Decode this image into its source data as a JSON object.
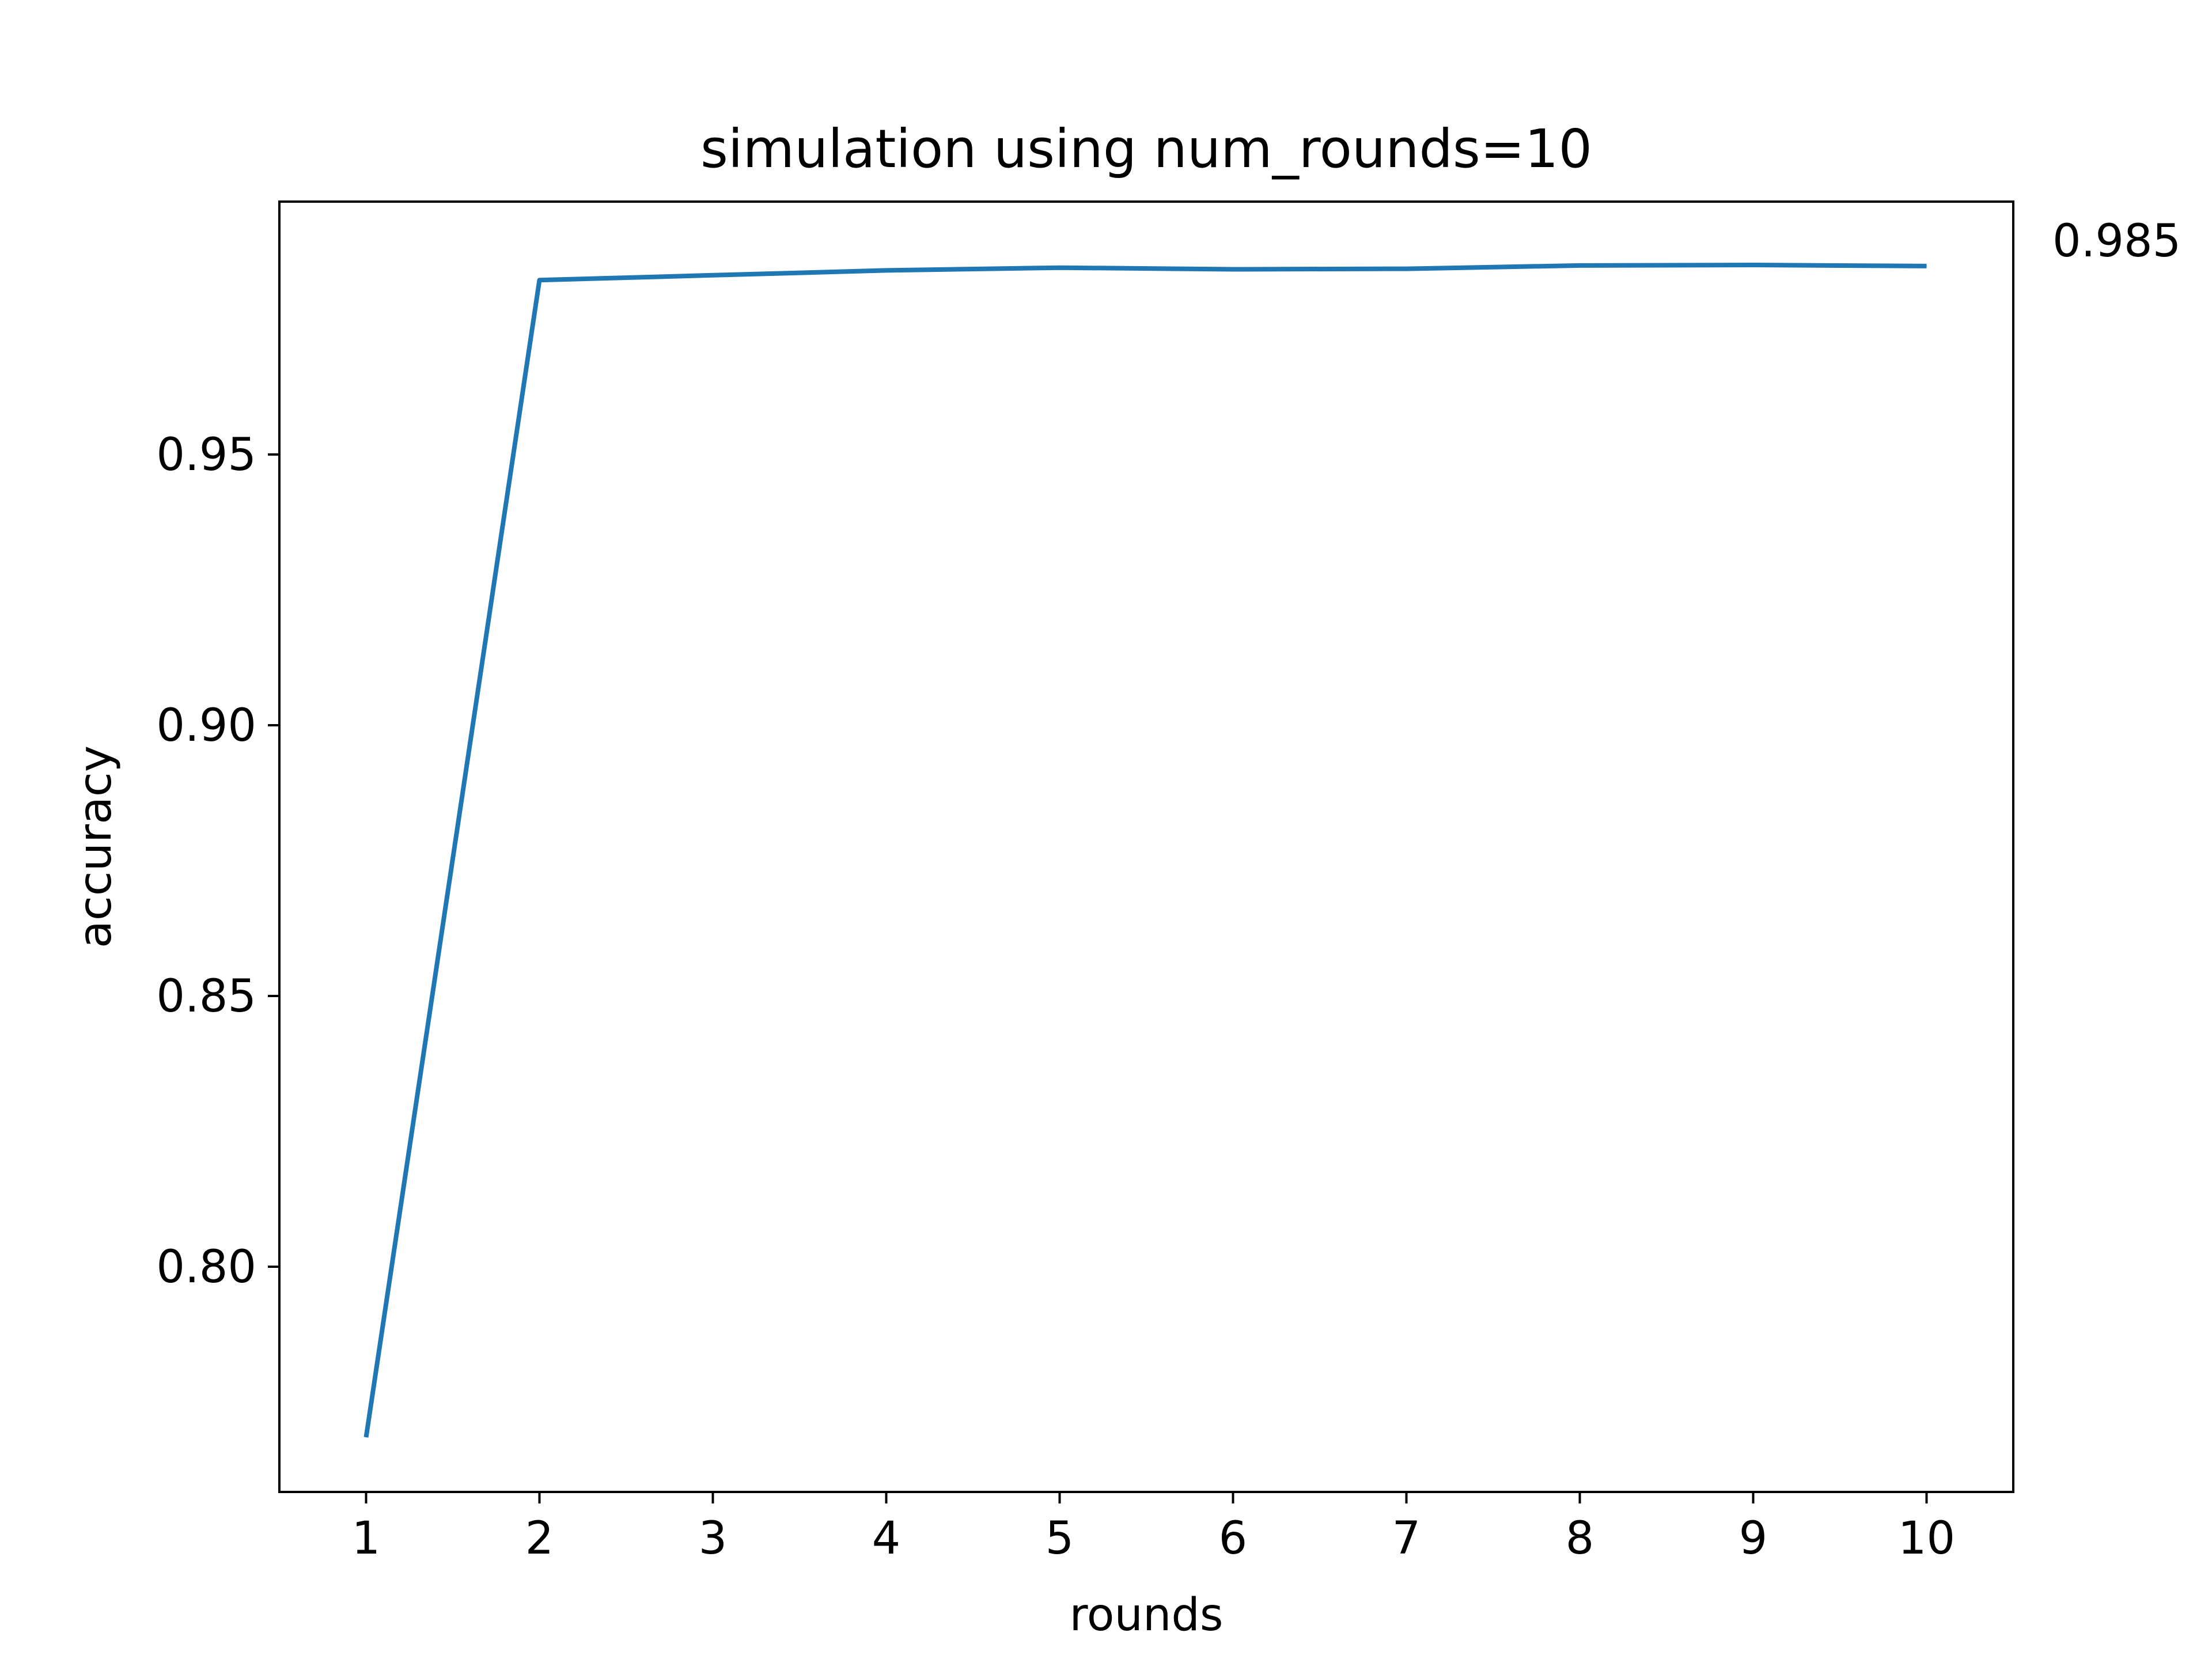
{
  "chart_data": {
    "type": "line",
    "title": "simulation using num_rounds=10",
    "xlabel": "rounds",
    "ylabel": "accuracy",
    "x": [
      1,
      2,
      3,
      4,
      5,
      6,
      7,
      8,
      9,
      10
    ],
    "xticks": [
      "1",
      "2",
      "3",
      "4",
      "5",
      "6",
      "7",
      "8",
      "9",
      "10"
    ],
    "xlim": [
      0.5,
      10.5
    ],
    "ylim": [
      0.7584,
      0.9967
    ],
    "yticks": [
      0.8,
      0.85,
      0.9,
      0.95
    ],
    "ytick_labels": [
      "0.80",
      "0.85",
      "0.90",
      "0.95"
    ],
    "series": [
      {
        "values": [
          0.7685,
          0.9822,
          0.9831,
          0.984,
          0.9845,
          0.9842,
          0.9843,
          0.9849,
          0.985,
          0.9848
        ],
        "color": "#1f77b4"
      }
    ],
    "annotation": "0.985",
    "grid": false
  }
}
